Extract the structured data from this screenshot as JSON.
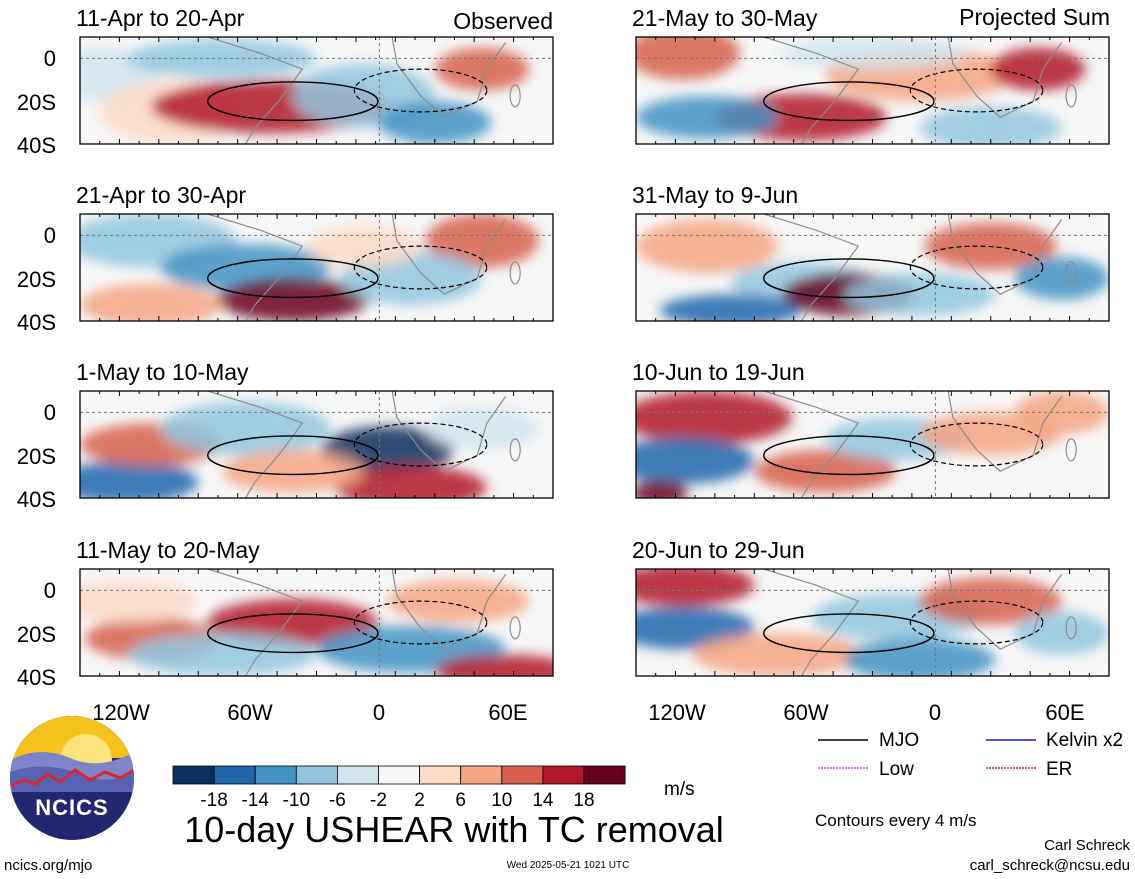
{
  "header": {
    "left_label": "Observed",
    "right_label": "Projected Sum"
  },
  "panels_left": [
    {
      "title": "11-Apr to 20-Apr"
    },
    {
      "title": "21-Apr to 30-Apr"
    },
    {
      "title": "1-May to 10-May"
    },
    {
      "title": "11-May to 20-May"
    }
  ],
  "panels_right": [
    {
      "title": "21-May to 30-May"
    },
    {
      "title": "31-May to 9-Jun"
    },
    {
      "title": "10-Jun to 19-Jun"
    },
    {
      "title": "20-Jun to 29-Jun"
    }
  ],
  "lat_labels": [
    "0",
    "20S",
    "40S"
  ],
  "lon_labels": [
    "120W",
    "60W",
    "0",
    "60E"
  ],
  "colorbar": {
    "ticks": [
      "-18",
      "-14",
      "-10",
      "-6",
      "-2",
      "2",
      "6",
      "10",
      "14",
      "18"
    ],
    "colors": [
      "#0b2f5e",
      "#2166ac",
      "#4393c3",
      "#92c5de",
      "#d1e5f0",
      "#f7f7f7",
      "#fddbc7",
      "#f4a582",
      "#d6604d",
      "#b2182b",
      "#67001f"
    ],
    "units": "m/s"
  },
  "legend": {
    "items": [
      {
        "label": "MJO",
        "color": "#000000"
      },
      {
        "label": "Kelvin x2",
        "color": "#1a1ad0"
      },
      {
        "label": "Low",
        "color": "#b455e0"
      },
      {
        "label": "ER",
        "color": "#d42020"
      }
    ],
    "note": "Contours every 4 m/s"
  },
  "main_title": "10-day USHEAR with TC removal",
  "logo_text": "NCICS",
  "footer": {
    "url": "ncics.org/mjo",
    "timestamp": "Wed 2025-05-21 1021 UTC",
    "author": "Carl Schreck",
    "email": "carl_schreck@ncsu.edu"
  }
}
